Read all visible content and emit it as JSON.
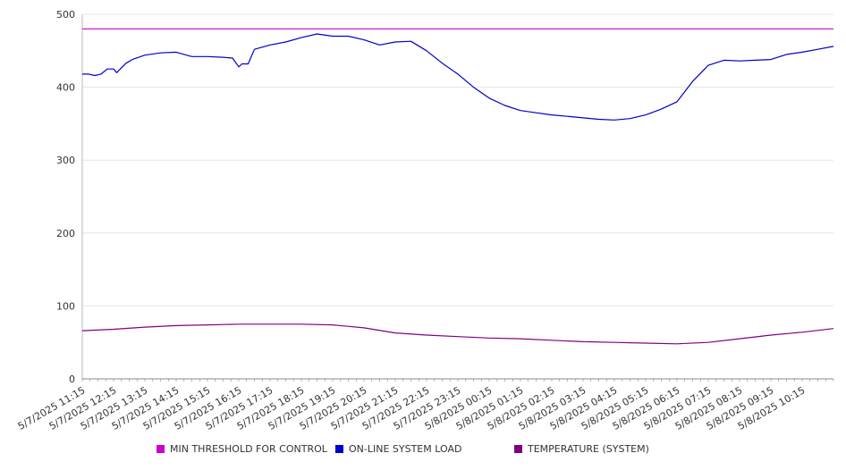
{
  "chart_data": {
    "type": "line",
    "ylim": [
      0,
      500
    ],
    "yticks": [
      0,
      100,
      200,
      300,
      400,
      500
    ],
    "x_tick_labels": [
      "5/7/2025 11:15",
      "5/7/2025 12:15",
      "5/7/2025 13:15",
      "5/7/2025 14:15",
      "5/7/2025 15:15",
      "5/7/2025 16:15",
      "5/7/2025 17:15",
      "5/7/2025 18:15",
      "5/7/2025 19:15",
      "5/7/2025 20:15",
      "5/7/2025 21:15",
      "5/7/2025 22:15",
      "5/7/2025 23:15",
      "5/8/2025 00:15",
      "5/8/2025 01:15",
      "5/8/2025 02:15",
      "5/8/2025 03:15",
      "5/8/2025 04:15",
      "5/8/2025 05:15",
      "5/8/2025 06:15",
      "5/8/2025 07:15",
      "5/8/2025 08:15",
      "5/8/2025 09:15",
      "5/8/2025 10:15"
    ],
    "x_tick_hours": [
      0,
      1,
      2,
      3,
      4,
      5,
      6,
      7,
      8,
      9,
      10,
      11,
      12,
      13,
      14,
      15,
      16,
      17,
      18,
      19,
      20,
      21,
      22,
      23
    ],
    "x_range_hours": [
      0,
      24
    ],
    "grid": true,
    "legend_position": "bottom",
    "series": [
      {
        "name": "MIN THRESHOLD FOR CONTROL",
        "color": "#cc00cc",
        "x": [
          0,
          24
        ],
        "values": [
          480,
          480
        ]
      },
      {
        "name": "ON-LINE SYSTEM LOAD",
        "color": "#0000cc",
        "x": [
          0,
          0.2,
          0.4,
          0.6,
          0.8,
          1.0,
          1.1,
          1.4,
          1.6,
          2.0,
          2.5,
          3.0,
          3.5,
          4.0,
          4.5,
          4.8,
          5.0,
          5.1,
          5.3,
          5.5,
          6.0,
          6.5,
          7.0,
          7.5,
          8.0,
          8.5,
          9.0,
          9.5,
          10.0,
          10.5,
          11.0,
          11.5,
          12.0,
          12.5,
          13.0,
          13.5,
          14.0,
          14.5,
          15.0,
          15.5,
          16.0,
          16.5,
          17.0,
          17.5,
          18.0,
          18.5,
          19.0,
          19.5,
          20.0,
          20.5,
          21.0,
          21.5,
          22.0,
          22.5,
          23.0,
          23.5,
          24.0
        ],
        "values": [
          418,
          418,
          416,
          418,
          425,
          425,
          420,
          433,
          438,
          444,
          447,
          448,
          442,
          442,
          441,
          440,
          428,
          432,
          432,
          452,
          458,
          462,
          468,
          473,
          470,
          470,
          465,
          458,
          462,
          463,
          450,
          433,
          418,
          400,
          385,
          375,
          368,
          365,
          362,
          360,
          358,
          356,
          355,
          357,
          362,
          370,
          380,
          408,
          430,
          437,
          436,
          437,
          438,
          445,
          448,
          452,
          456
        ]
      },
      {
        "name": "TEMPERATURE (SYSTEM)",
        "color": "#800080",
        "x": [
          0,
          1,
          2,
          3,
          4,
          5,
          6,
          7,
          8,
          9,
          10,
          11,
          12,
          13,
          14,
          15,
          16,
          17,
          18,
          19,
          20,
          21,
          22,
          23,
          24
        ],
        "values": [
          66,
          68,
          71,
          73,
          74,
          75,
          75,
          75,
          74,
          70,
          63,
          60,
          58,
          56,
          55,
          53,
          51,
          50,
          49,
          48,
          50,
          55,
          60,
          64,
          69
        ]
      }
    ]
  }
}
